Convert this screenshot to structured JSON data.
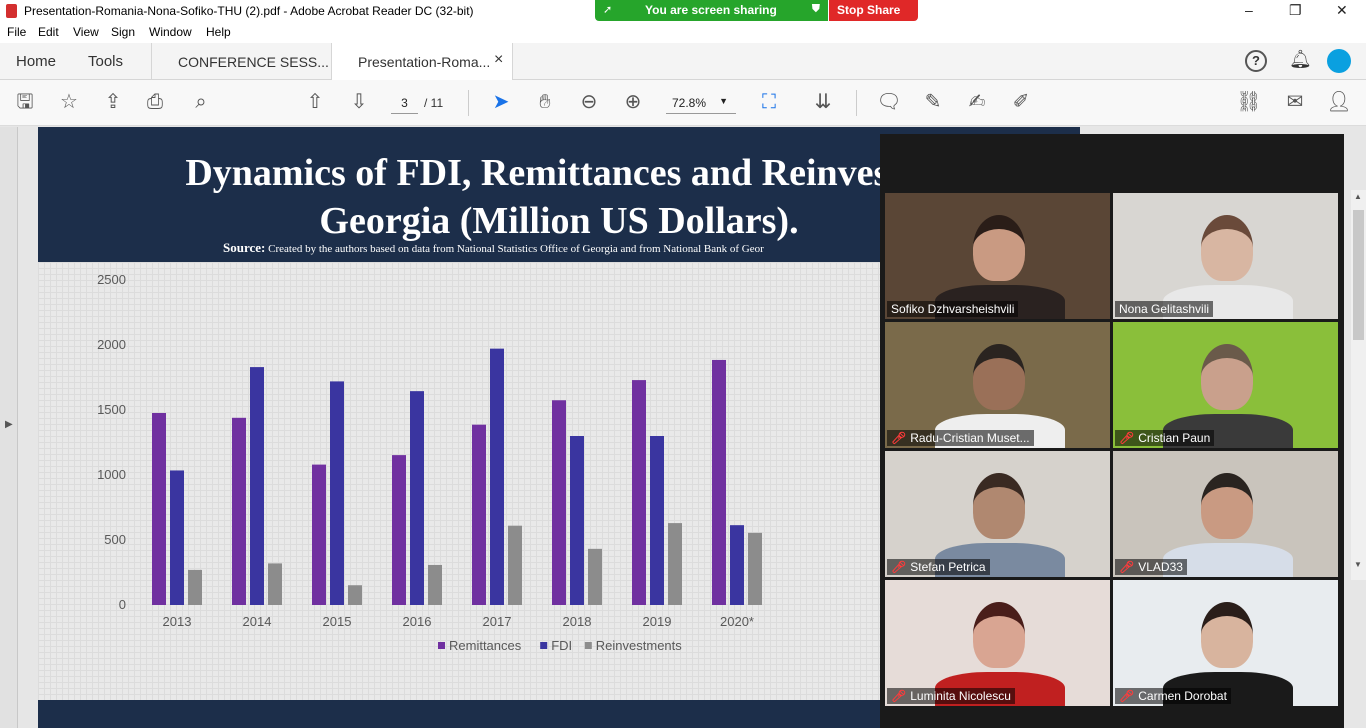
{
  "window": {
    "title": "Presentation-Romania-Nona-Sofiko-THU (2).pdf - Adobe Acrobat Reader DC (32-bit)",
    "minimize": "–",
    "maximize": "❐",
    "close": "✕"
  },
  "screen_share": {
    "status": "You are screen sharing",
    "stop_label": "Stop Share",
    "accent": "#26a52b",
    "stop_color": "#e02828"
  },
  "menu": [
    "File",
    "Edit",
    "View",
    "Sign",
    "Window",
    "Help"
  ],
  "tabs": {
    "home": "Home",
    "tools": "Tools",
    "doc1": "CONFERENCE SESS...",
    "doc2": "Presentation-Roma...",
    "close": "×"
  },
  "toolbar": {
    "icons": [
      "save-icon",
      "star-icon",
      "upload-icon",
      "print-icon",
      "search-zoom-icon",
      "page-up-icon",
      "page-down-icon",
      "select-arrow-icon",
      "hand-icon",
      "zoom-out-icon",
      "zoom-in-icon",
      "fit-page-icon",
      "scroll-mode-icon",
      "comment-icon",
      "highlight-icon",
      "sign-icon",
      "fill-sign-icon",
      "link-icon",
      "email-icon",
      "add-user-icon"
    ],
    "page_current": "3",
    "page_total": "/ 11",
    "zoom": "72.8%"
  },
  "slide": {
    "title_line1": "Dynamics of FDI, Remittances and Reinvestm",
    "title_line2": "Georgia (Million US Dollars).",
    "source_label": "Source:",
    "source_text": " Created by the authors based on data from National Statistics Office of Georgia and from National Bank of Geor"
  },
  "chart_data": {
    "type": "bar",
    "categories": [
      "2013",
      "2014",
      "2015",
      "2016",
      "2017",
      "2018",
      "2019",
      "2020*"
    ],
    "series": [
      {
        "name": "Remittances",
        "color": "#7030a0",
        "values": [
          1477,
          1440,
          1080,
          1153,
          1387,
          1575,
          1730,
          1885
        ]
      },
      {
        "name": "FDI",
        "color": "#3a35a0",
        "values": [
          1035,
          1830,
          1720,
          1645,
          1972,
          1300,
          1300,
          614
        ]
      },
      {
        "name": "Reinvestments",
        "color": "#8c8c8c",
        "values": [
          270,
          320,
          152,
          308,
          610,
          432,
          630,
          555
        ]
      }
    ],
    "yticks": [
      "0",
      "500",
      "1000",
      "1500",
      "2000",
      "2500"
    ],
    "ylim": [
      0,
      2500
    ],
    "legend": "bottom",
    "grid": false
  },
  "participants": [
    {
      "name": "Sofiko Dzhvarsheishvili",
      "muted": false,
      "active": true,
      "bg": "#5a4636",
      "skin": "#c99a82",
      "hair": "#2a1d18",
      "shirt": "#2a2220"
    },
    {
      "name": "Nona Gelitashvili",
      "muted": false,
      "active": false,
      "bg": "#d8d6d2",
      "skin": "#d8b6a2",
      "hair": "#6a4a3a",
      "shirt": "#e8e8e8"
    },
    {
      "name": "Radu-Cristian Muset...",
      "muted": true,
      "active": false,
      "bg": "#7a6a4a",
      "skin": "#9a7058",
      "hair": "#2a2420",
      "shirt": "#eeeeee"
    },
    {
      "name": "Cristian Paun",
      "muted": true,
      "active": false,
      "bg": "#8abf3a",
      "skin": "#c9a08c",
      "hair": "#6a5a4a",
      "shirt": "#3a3a3a"
    },
    {
      "name": "Stefan Petrica",
      "muted": true,
      "active": false,
      "bg": "#d6d2cc",
      "skin": "#b08870",
      "hair": "#3a2a22",
      "shirt": "#7a8aa0"
    },
    {
      "name": "VLAD33",
      "muted": true,
      "active": false,
      "bg": "#c9c4bc",
      "skin": "#c99a82",
      "hair": "#2a2420",
      "shirt": "#d6dde8"
    },
    {
      "name": "Luminita Nicolescu",
      "muted": true,
      "active": false,
      "bg": "#e6dcd8",
      "skin": "#d9a592",
      "hair": "#4a1e1a",
      "shirt": "#c02020"
    },
    {
      "name": "Carmen Dorobat",
      "muted": true,
      "active": false,
      "bg": "#e8ecef",
      "skin": "#d8b49e",
      "hair": "#2a1e1a",
      "shirt": "#1a1a1a"
    }
  ]
}
